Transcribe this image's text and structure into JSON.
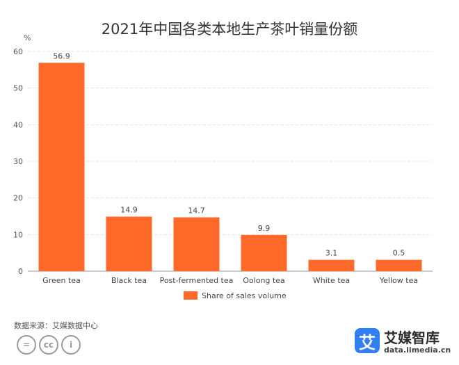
{
  "source_note": "数据来源：艾媒数据中心",
  "license_icons": [
    "equals-icon",
    "cc-icon",
    "person-icon"
  ],
  "license_labels": [
    "=",
    "cc",
    "i"
  ],
  "brand": {
    "name": "艾媒智库",
    "url": "data.iimedia.cn",
    "logo_char": "艾",
    "color": "#2f7ff0"
  },
  "colors": {
    "bar": "#ff6a2a",
    "grid": "#e6e6e6",
    "axis": "#999999"
  },
  "chart_data": {
    "type": "bar",
    "title": "2021年中国各类本地生产茶叶销量份额",
    "ylabel": "%",
    "xlabel": "",
    "categories": [
      "Green tea",
      "Black tea",
      "Post-fermented tea",
      "Oolong tea",
      "White tea",
      "Yellow tea"
    ],
    "series": [
      {
        "name": "Share of sales volume",
        "values": [
          56.9,
          14.9,
          14.7,
          9.9,
          3.1,
          0.5
        ]
      }
    ],
    "data_labels": [
      "56.9",
      "14.9",
      "14.7",
      "9.9",
      "3.1",
      "0.5"
    ],
    "ylim": [
      0,
      60
    ],
    "yticks": [
      0,
      10,
      20,
      30,
      40,
      50,
      60
    ],
    "grid": true,
    "legend_position": "bottom"
  }
}
